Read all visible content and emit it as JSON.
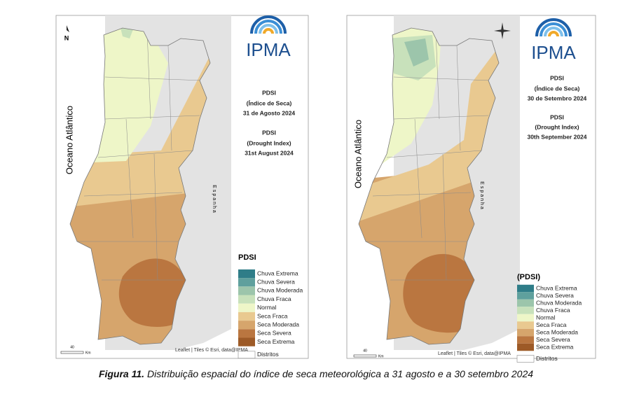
{
  "panels": [
    {
      "logo": "IPMA",
      "info": [
        "PDSI",
        "(Índice de Seca)",
        "31 de Agosto 2024",
        "PDSI",
        "(Drought Index)",
        "31st August 2024"
      ],
      "ocean": "Oceano Atlântico",
      "country": "Espanha",
      "north": "N",
      "scale": {
        "value": "40",
        "unit": "Km"
      },
      "attribution": "Leaflet | Tiles © Esri, data@IPMA",
      "legend": {
        "title": "PDSI",
        "items": [
          {
            "label": "Chuva Extrema",
            "color": "#2f7d88"
          },
          {
            "label": "Chuva Severa",
            "color": "#5fa09d"
          },
          {
            "label": "Chuva Moderada",
            "color": "#9cc5ab"
          },
          {
            "label": "Chuva Fraca",
            "color": "#c8e1bb"
          },
          {
            "label": "Normal",
            "color": "#eef6c8"
          },
          {
            "label": "Seca Fraca",
            "color": "#e9c990"
          },
          {
            "label": "Seca Moderada",
            "color": "#d6a56c"
          },
          {
            "label": "Seca Severa",
            "color": "#ba7640"
          },
          {
            "label": "Seca Extrema",
            "color": "#9d5a27"
          }
        ],
        "districts": "Distritos"
      }
    },
    {
      "logo": "IPMA",
      "info": [
        "PDSI",
        "(Índice de Seca)",
        "30 de Setembro 2024",
        "PDSI",
        "(Drought Index)",
        "30th September 2024"
      ],
      "ocean": "Oceano Atlântico",
      "country": "Espanha",
      "scale": {
        "value": "40",
        "unit": "Km"
      },
      "attribution": "Leaflet | Tiles © Esri, data@IPMA",
      "legend": {
        "title": "(PDSI)",
        "items": [
          {
            "label": "Chuva Extrema",
            "color": "#2f7d88"
          },
          {
            "label": "Chuva Severa",
            "color": "#5fa09d"
          },
          {
            "label": "Chuva Moderada",
            "color": "#9cc5ab"
          },
          {
            "label": "Chuva Fraca",
            "color": "#c8e1bb"
          },
          {
            "label": "Normal",
            "color": "#eef6c8"
          },
          {
            "label": "Seca Fraca",
            "color": "#e9c990"
          },
          {
            "label": "Seca Moderada",
            "color": "#d6a56c"
          },
          {
            "label": "Seca Severa",
            "color": "#ba7640"
          },
          {
            "label": "Seca Extrema",
            "color": "#9d5a27"
          }
        ],
        "districts": "Distritos"
      }
    }
  ],
  "caption": {
    "label": "Figura 11.",
    "text": "Distribuição espacial do índice de seca meteorológica a 31 agosto e a 30 setembro 2024"
  }
}
